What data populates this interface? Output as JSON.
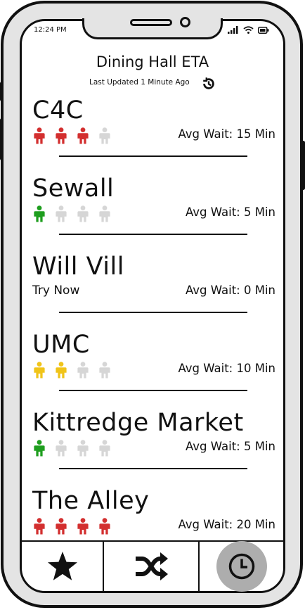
{
  "status_bar": {
    "time": "12:24 PM"
  },
  "header": {
    "title": "Dining Hall ETA",
    "last_updated": "Last Updated 1 Minute Ago"
  },
  "colors": {
    "red": "#d32f2f",
    "green": "#1e9e1e",
    "yellow": "#f0c419",
    "gray": "#d6d6d6"
  },
  "halls": [
    {
      "name": "C4C",
      "wait": "Avg Wait: 15 Min",
      "level": 3,
      "color": "red",
      "note": ""
    },
    {
      "name": "Sewall",
      "wait": "Avg Wait: 5 Min",
      "level": 1,
      "color": "green",
      "note": ""
    },
    {
      "name": "Will Vill",
      "wait": "Avg Wait: 0 Min",
      "level": 0,
      "color": "gray",
      "note": "Try Now"
    },
    {
      "name": "UMC",
      "wait": "Avg Wait: 10 Min",
      "level": 2,
      "color": "yellow",
      "note": ""
    },
    {
      "name": "Kittredge Market",
      "wait": "Avg Wait: 5 Min",
      "level": 1,
      "color": "green",
      "note": ""
    },
    {
      "name": "The Alley",
      "wait": "Avg Wait: 20 Min",
      "level": 4,
      "color": "red",
      "note": ""
    }
  ],
  "tabs": [
    {
      "icon": "star-icon",
      "active": false
    },
    {
      "icon": "shuffle-icon",
      "active": false
    },
    {
      "icon": "clock-icon",
      "active": true
    }
  ]
}
